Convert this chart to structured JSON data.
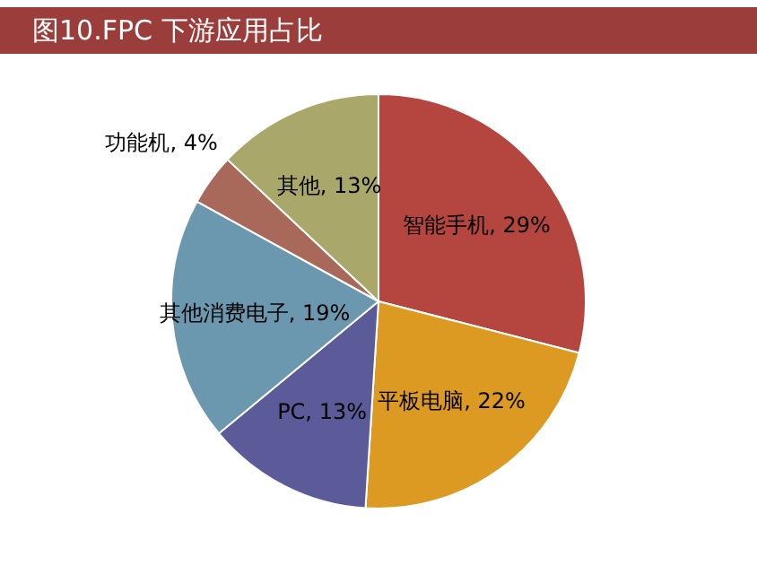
{
  "chart_data": {
    "type": "pie",
    "title": "图10.FPC 下游应用占比",
    "categories": [
      "智能手机",
      "平板电脑",
      "PC",
      "其他消费电子",
      "功能机",
      "其他"
    ],
    "values": [
      29,
      22,
      13,
      19,
      4,
      13
    ],
    "value_labels": [
      "29%",
      "22%",
      "13%",
      "19%",
      "4%",
      "13%"
    ],
    "colors": [
      "#b5463f",
      "#dc9a22",
      "#5a5b98",
      "#6b98ae",
      "#a8685a",
      "#a9a86a"
    ],
    "legend": false
  }
}
